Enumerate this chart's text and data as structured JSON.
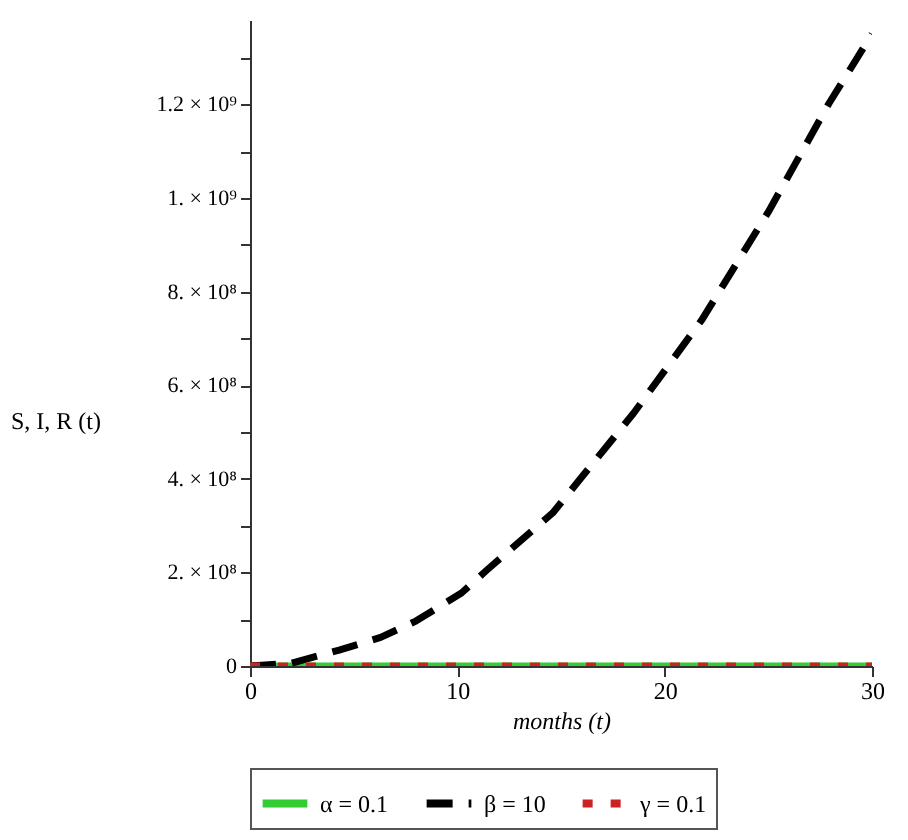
{
  "chart_data": {
    "type": "line",
    "xlabel": "months (t)",
    "ylabel": "S, I, R (t)",
    "xlim": [
      0,
      30
    ],
    "xticks": [
      0,
      10,
      20,
      30
    ],
    "ylim": [
      0,
      1380000000
    ],
    "yticks": [
      0,
      {
        "value": 100000000,
        "label": null
      },
      {
        "value": 200000000,
        "label": "2. × 10⁸"
      },
      {
        "value": 300000000,
        "label": null
      },
      {
        "value": 400000000,
        "label": "4. × 10⁸"
      },
      {
        "value": 500000000,
        "label": null
      },
      {
        "value": 600000000,
        "label": "6. × 10⁸"
      },
      {
        "value": 700000000,
        "label": null
      },
      {
        "value": 800000000,
        "label": "8. × 10⁸"
      },
      {
        "value": 900000000,
        "label": null
      },
      {
        "value": 1000000000,
        "label": "1. × 10⁹"
      },
      {
        "value": 1100000000,
        "label": null
      },
      {
        "value": 1200000000,
        "label": "1.2 × 10⁹"
      },
      {
        "value": 1300000000,
        "label": null
      }
    ],
    "grid": false,
    "legend": "bottom",
    "marker": "none",
    "series": [
      {
        "name": "α = 0.1",
        "color": "#33cc33",
        "line_style": "solid",
        "x": [
          0,
          30
        ],
        "values": [
          0,
          0
        ]
      },
      {
        "name": "β = 10",
        "color": "#000000",
        "line_style": "dashed",
        "x": [
          0,
          2,
          4.3,
          6.3,
          8,
          10.2,
          11.4,
          14.6,
          18.5,
          21.8,
          25,
          27.9,
          30
        ],
        "values": [
          0,
          6000000,
          34000000,
          61000000,
          96000000,
          156000000,
          204000000,
          327000000,
          540000000,
          740000000,
          970000000,
          1200000000,
          1350000000
        ]
      },
      {
        "name": "γ = 0.1",
        "color": "#cc2222",
        "line_style": "dotted",
        "x": [
          0,
          30
        ],
        "values": [
          0,
          0
        ]
      }
    ]
  }
}
